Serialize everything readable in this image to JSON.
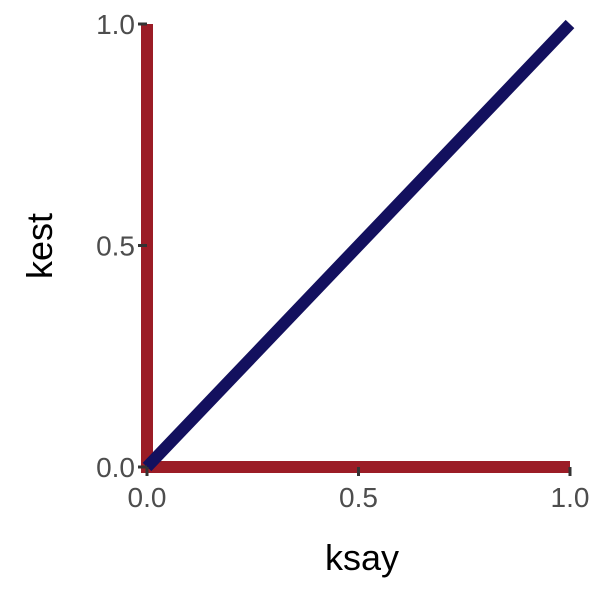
{
  "chart_data": {
    "type": "line",
    "title": "",
    "xlabel": "ksay",
    "ylabel": "kest",
    "xlim": [
      0,
      1
    ],
    "ylim": [
      0,
      1
    ],
    "x_ticks": [
      {
        "value": 0,
        "label": "0.0"
      },
      {
        "value": 0.5,
        "label": "0.5"
      },
      {
        "value": 1,
        "label": "1.0"
      }
    ],
    "y_ticks": [
      {
        "value": 0,
        "label": "0.0"
      },
      {
        "value": 0.5,
        "label": "0.5"
      },
      {
        "value": 1,
        "label": "1.0"
      }
    ],
    "grid": false,
    "legend": "none",
    "series": [
      {
        "color": "#9b1c26",
        "points": [
          [
            0,
            1
          ],
          [
            0,
            0
          ],
          [
            1,
            0
          ]
        ]
      },
      {
        "color": "#13105e",
        "points": [
          [
            0,
            0
          ],
          [
            1,
            1
          ]
        ]
      }
    ]
  }
}
